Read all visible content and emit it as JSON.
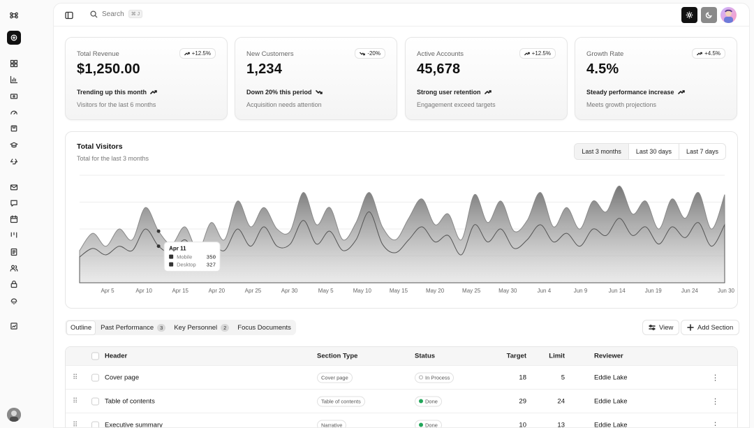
{
  "app": {
    "search_placeholder": "Search",
    "search_shortcut": "⌘ J"
  },
  "sidebar": {
    "items": [
      "command-icon",
      "quick-create-icon",
      "dashboard-icon",
      "analytics-icon",
      "billing-icon",
      "gauge-icon",
      "package-icon",
      "graduation-icon",
      "recycle-icon",
      "mail-icon",
      "chat-icon",
      "calendar-icon",
      "kanban-icon",
      "document-icon",
      "users-icon",
      "lock-icon",
      "fingerprint-icon",
      "report-icon"
    ]
  },
  "cards": [
    {
      "label": "Total Revenue",
      "value": "$1,250.00",
      "badge": "+12.5%",
      "badge_dir": "up",
      "trend": "Trending up this month",
      "trend_dir": "up",
      "sub": "Visitors for the last 6 months"
    },
    {
      "label": "New Customers",
      "value": "1,234",
      "badge": "-20%",
      "badge_dir": "down",
      "trend": "Down 20% this period",
      "trend_dir": "down",
      "sub": "Acquisition needs attention"
    },
    {
      "label": "Active Accounts",
      "value": "45,678",
      "badge": "+12.5%",
      "badge_dir": "up",
      "trend": "Strong user retention",
      "trend_dir": "up",
      "sub": "Engagement exceed targets"
    },
    {
      "label": "Growth Rate",
      "value": "4.5%",
      "badge": "+4.5%",
      "badge_dir": "up",
      "trend": "Steady performance increase",
      "trend_dir": "up",
      "sub": "Meets growth projections"
    }
  ],
  "visitors": {
    "title": "Total Visitors",
    "subtitle": "Total for the last 3 months",
    "ranges": [
      "Last 3 months",
      "Last 30 days",
      "Last 7 days"
    ],
    "active_range": "Last 3 months"
  },
  "chart_data": {
    "type": "area",
    "title": "Total Visitors",
    "x_ticks": [
      "Apr 5",
      "Apr 10",
      "Apr 15",
      "Apr 20",
      "Apr 25",
      "Apr 30",
      "May 5",
      "May 10",
      "May 15",
      "May 20",
      "May 25",
      "May 30",
      "Jun 4",
      "Jun 9",
      "Jun 14",
      "Jun 19",
      "Jun 24",
      "Jun 30"
    ],
    "ylim": [
      0,
      500
    ],
    "series": [
      {
        "name": "Mobile",
        "color": "#888888",
        "values": [
          150,
          230,
          170,
          250,
          200,
          350,
          240,
          180,
          260,
          150,
          280,
          200,
          380,
          260,
          350,
          250,
          240,
          420,
          270,
          350,
          200,
          280,
          420,
          260,
          200,
          300,
          390,
          270,
          320,
          200,
          410,
          280,
          380,
          240,
          290,
          420,
          260,
          350,
          250,
          380,
          330,
          450,
          320,
          380,
          250,
          390,
          300,
          420,
          250,
          410
        ]
      },
      {
        "name": "Desktop",
        "color": "#555555",
        "values": [
          120,
          160,
          130,
          170,
          150,
          250,
          170,
          140,
          200,
          120,
          180,
          150,
          250,
          170,
          260,
          170,
          180,
          290,
          180,
          240,
          150,
          200,
          330,
          180,
          140,
          200,
          260,
          190,
          220,
          130,
          270,
          190,
          250,
          160,
          200,
          270,
          190,
          230,
          170,
          250,
          220,
          300,
          220,
          260,
          180,
          260,
          210,
          280,
          170,
          270
        ]
      }
    ],
    "tooltip": {
      "label": "Apr 11",
      "rows": [
        {
          "name": "Mobile",
          "value": "350"
        },
        {
          "name": "Desktop",
          "value": "327"
        }
      ]
    }
  },
  "tabs": [
    {
      "label": "Outline",
      "active": true
    },
    {
      "label": "Past Performance",
      "count": "3"
    },
    {
      "label": "Key Personnel",
      "count": "2"
    },
    {
      "label": "Focus Documents"
    }
  ],
  "actions": {
    "view": "View",
    "add_section": "Add Section"
  },
  "table": {
    "columns": [
      "Header",
      "Section Type",
      "Status",
      "Target",
      "Limit",
      "Reviewer"
    ],
    "rows": [
      {
        "header": "Cover page",
        "type": "Cover page",
        "status": "In Process",
        "target": "18",
        "limit": "5",
        "reviewer": "Eddie Lake"
      },
      {
        "header": "Table of contents",
        "type": "Table of contents",
        "status": "Done",
        "target": "29",
        "limit": "24",
        "reviewer": "Eddie Lake"
      },
      {
        "header": "Executive summary",
        "type": "Narrative",
        "status": "Done",
        "target": "10",
        "limit": "13",
        "reviewer": "Eddie Lake"
      }
    ]
  },
  "colors": {
    "accent": "#111111",
    "done": "#22a65a",
    "process": "#aaaaaa"
  }
}
